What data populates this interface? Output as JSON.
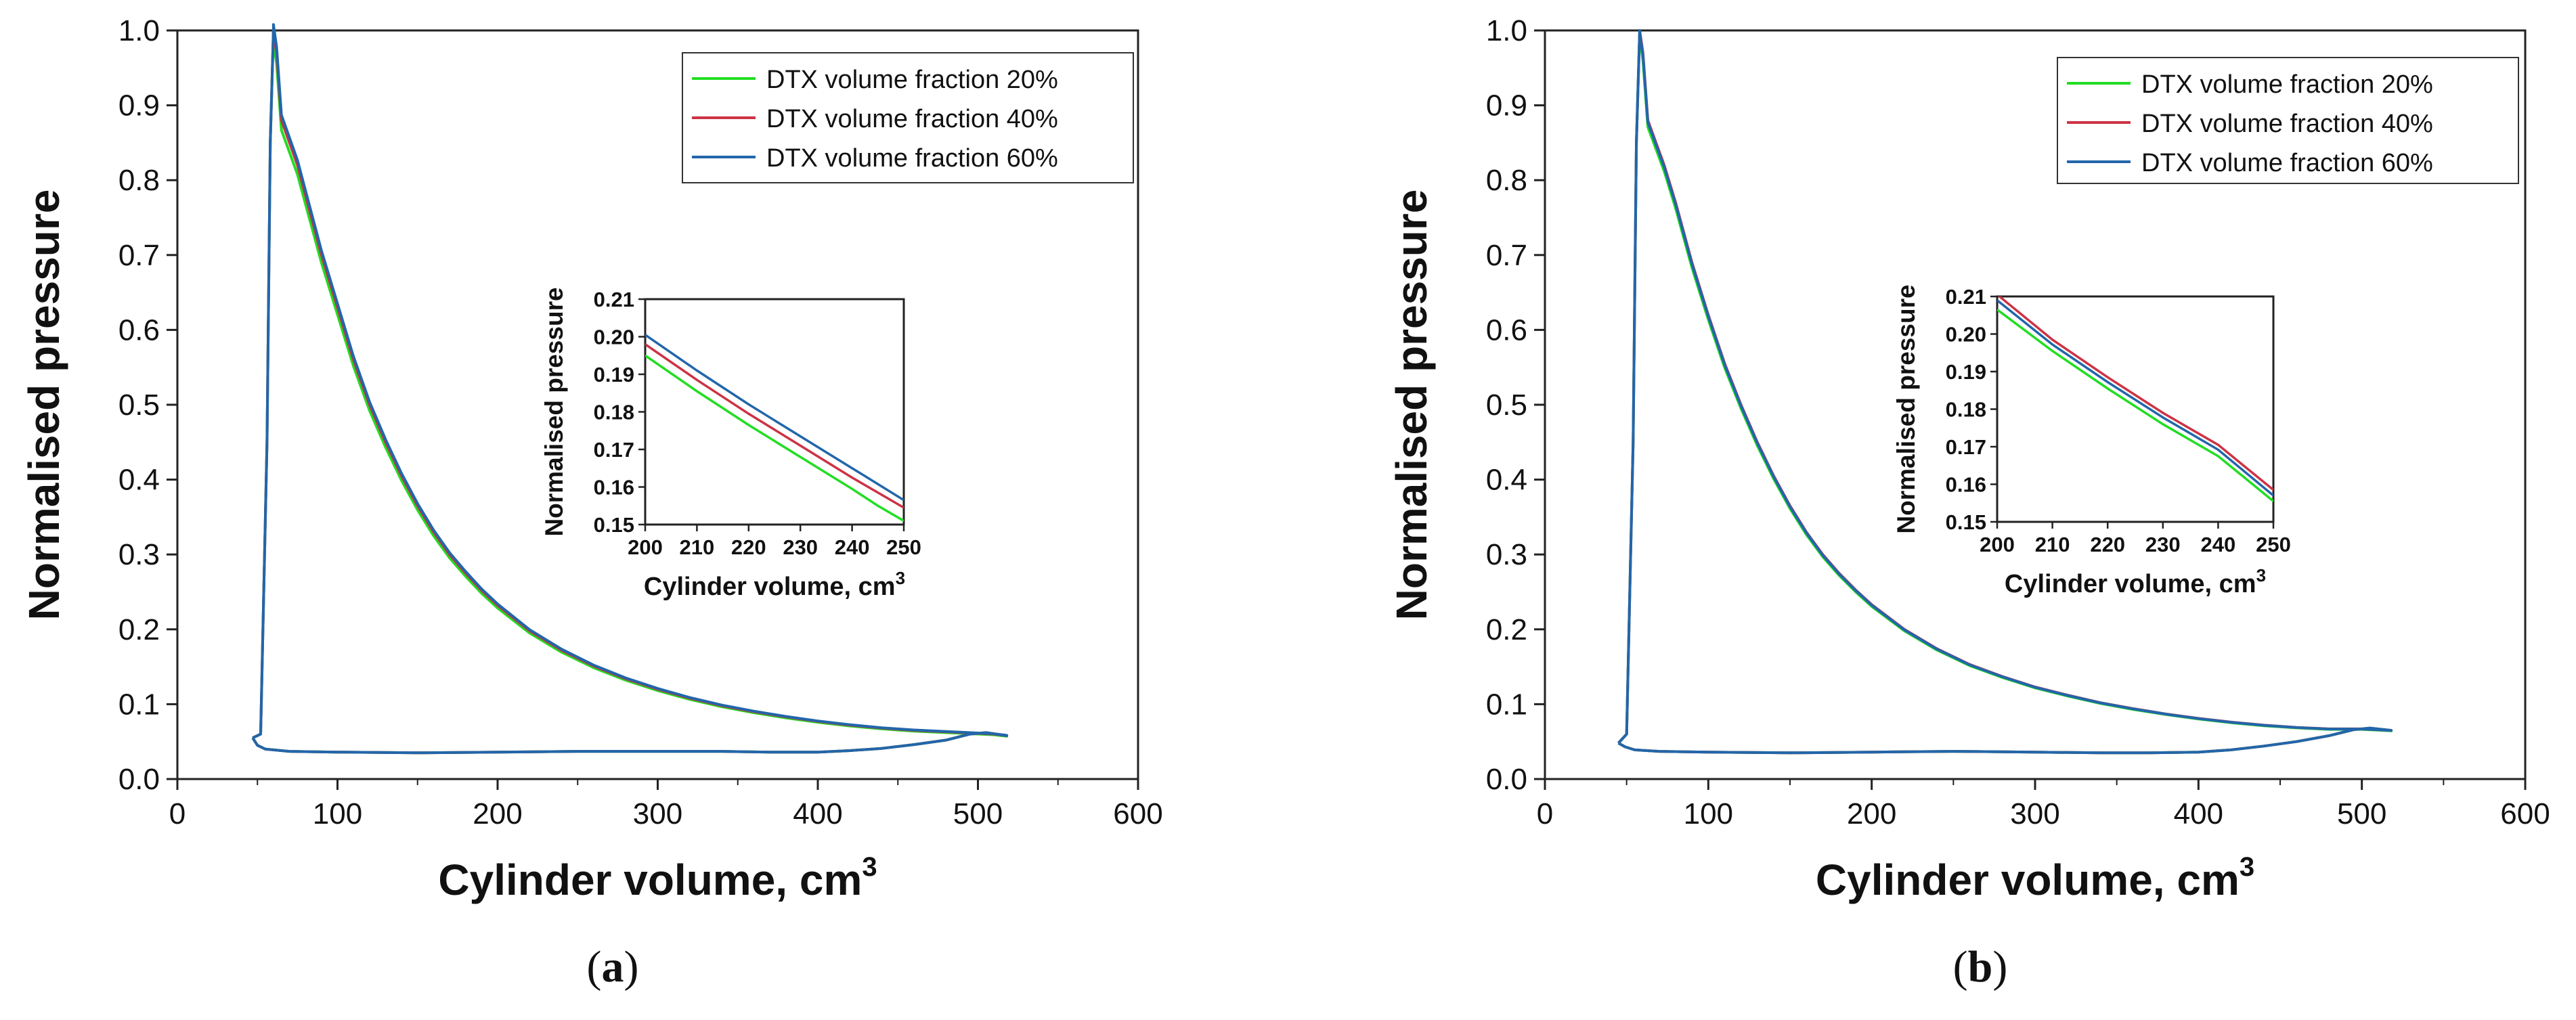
{
  "chart_data": [
    {
      "id": "a",
      "type": "line",
      "panel_label": "a",
      "xlabel": "Cylinder volume, cm",
      "xlabel_sup": "3",
      "ylabel": "Normalised pressure",
      "xlim": [
        0,
        600
      ],
      "ylim": [
        0,
        1.0
      ],
      "xticks": [
        0,
        100,
        200,
        300,
        400,
        500,
        600
      ],
      "yticks": [
        0.0,
        0.1,
        0.2,
        0.3,
        0.4,
        0.5,
        0.6,
        0.7,
        0.8,
        0.9,
        1.0
      ],
      "grid": false,
      "legend_position": "top-right",
      "series": [
        {
          "name": "DTX volume fraction 20%",
          "color": "#22dd22",
          "expansion_scale": 0.985,
          "compression_scale": 1.0
        },
        {
          "name": "DTX volume fraction 40%",
          "color": "#cc3344",
          "expansion_scale": 1.0,
          "compression_scale": 1.0
        },
        {
          "name": "DTX volume fraction 60%",
          "color": "#2266aa",
          "expansion_scale": 1.008,
          "compression_scale": 1.0
        }
      ],
      "expansion_curve": [
        [
          60,
          1.0
        ],
        [
          62,
          0.97
        ],
        [
          65,
          0.88
        ],
        [
          70,
          0.85
        ],
        [
          75,
          0.82
        ],
        [
          80,
          0.78
        ],
        [
          90,
          0.7
        ],
        [
          100,
          0.63
        ],
        [
          110,
          0.56
        ],
        [
          120,
          0.5
        ],
        [
          130,
          0.45
        ],
        [
          140,
          0.405
        ],
        [
          150,
          0.365
        ],
        [
          160,
          0.33
        ],
        [
          170,
          0.3
        ],
        [
          180,
          0.275
        ],
        [
          190,
          0.252
        ],
        [
          200,
          0.232
        ],
        [
          220,
          0.198
        ],
        [
          240,
          0.172
        ],
        [
          260,
          0.151
        ],
        [
          280,
          0.134
        ],
        [
          300,
          0.12
        ],
        [
          320,
          0.108
        ],
        [
          340,
          0.098
        ],
        [
          360,
          0.09
        ],
        [
          380,
          0.083
        ],
        [
          400,
          0.077
        ],
        [
          420,
          0.072
        ],
        [
          440,
          0.068
        ],
        [
          460,
          0.065
        ],
        [
          480,
          0.063
        ],
        [
          500,
          0.061
        ],
        [
          510,
          0.06
        ],
        [
          518,
          0.058
        ]
      ],
      "compression_curve": [
        [
          47,
          0.055
        ],
        [
          52,
          0.06
        ],
        [
          56,
          0.45
        ],
        [
          58,
          0.85
        ],
        [
          60,
          1.0
        ]
      ],
      "bottom_curve": [
        [
          518,
          0.058
        ],
        [
          505,
          0.062
        ],
        [
          495,
          0.06
        ],
        [
          480,
          0.052
        ],
        [
          460,
          0.046
        ],
        [
          440,
          0.041
        ],
        [
          420,
          0.038
        ],
        [
          400,
          0.036
        ],
        [
          370,
          0.036
        ],
        [
          340,
          0.037
        ],
        [
          300,
          0.037
        ],
        [
          250,
          0.037
        ],
        [
          200,
          0.036
        ],
        [
          150,
          0.035
        ],
        [
          100,
          0.036
        ],
        [
          70,
          0.037
        ],
        [
          55,
          0.04
        ],
        [
          50,
          0.045
        ],
        [
          47,
          0.055
        ]
      ],
      "inset": {
        "xlabel": "Cylinder volume, cm",
        "xlabel_sup": "3",
        "ylabel": "Normalised pressure",
        "xlim": [
          200,
          250
        ],
        "ylim": [
          0.15,
          0.21
        ],
        "xticks": [
          200,
          210,
          220,
          230,
          240,
          250
        ],
        "yticks": [
          0.15,
          0.16,
          0.17,
          0.18,
          0.19,
          0.2,
          0.21
        ],
        "ytick_labels": [
          "0.15",
          "0.16",
          "0.17",
          "0.18",
          "0.19",
          "0.20",
          "0.21"
        ],
        "series": [
          {
            "name": "DTX volume fraction 20%",
            "color": "#22dd22",
            "points": [
              [
                200,
                0.195
              ],
              [
                210,
                0.1855
              ],
              [
                220,
                0.1765
              ],
              [
                230,
                0.168
              ],
              [
                240,
                0.1595
              ],
              [
                245,
                0.155
              ],
              [
                250,
                0.151
              ]
            ]
          },
          {
            "name": "DTX volume fraction 40%",
            "color": "#cc3344",
            "points": [
              [
                200,
                0.198
              ],
              [
                210,
                0.1885
              ],
              [
                220,
                0.1795
              ],
              [
                230,
                0.171
              ],
              [
                240,
                0.1625
              ],
              [
                250,
                0.1545
              ]
            ]
          },
          {
            "name": "DTX volume fraction 60%",
            "color": "#2266aa",
            "points": [
              [
                200,
                0.2005
              ],
              [
                210,
                0.191
              ],
              [
                220,
                0.182
              ],
              [
                230,
                0.1735
              ],
              [
                240,
                0.165
              ],
              [
                250,
                0.1565
              ]
            ]
          }
        ]
      }
    },
    {
      "id": "b",
      "type": "line",
      "panel_label": "b",
      "xlabel": "Cylinder volume, cm",
      "xlabel_sup": "3",
      "ylabel": "Normalised pressure",
      "xlim": [
        0,
        600
      ],
      "ylim": [
        0,
        1.0
      ],
      "xticks": [
        0,
        100,
        200,
        300,
        400,
        500,
        600
      ],
      "yticks": [
        0.0,
        0.1,
        0.2,
        0.3,
        0.4,
        0.5,
        0.6,
        0.7,
        0.8,
        0.9,
        1.0
      ],
      "grid": false,
      "legend_position": "top-right",
      "series": [
        {
          "name": "DTX volume fraction 20%",
          "color": "#22dd22",
          "expansion_scale": 0.99,
          "compression_scale": 1.0
        },
        {
          "name": "DTX volume fraction 40%",
          "color": "#cc3344",
          "expansion_scale": 1.0,
          "compression_scale": 1.0
        },
        {
          "name": "DTX volume fraction 60%",
          "color": "#2266aa",
          "expansion_scale": 0.997,
          "compression_scale": 1.0
        }
      ],
      "expansion_curve": [
        [
          58,
          1.0
        ],
        [
          60,
          0.97
        ],
        [
          63,
          0.88
        ],
        [
          68,
          0.85
        ],
        [
          73,
          0.82
        ],
        [
          80,
          0.77
        ],
        [
          90,
          0.69
        ],
        [
          100,
          0.62
        ],
        [
          110,
          0.555
        ],
        [
          120,
          0.5
        ],
        [
          130,
          0.45
        ],
        [
          140,
          0.405
        ],
        [
          150,
          0.365
        ],
        [
          160,
          0.33
        ],
        [
          170,
          0.3
        ],
        [
          180,
          0.275
        ],
        [
          190,
          0.253
        ],
        [
          200,
          0.233
        ],
        [
          220,
          0.2
        ],
        [
          240,
          0.174
        ],
        [
          260,
          0.153
        ],
        [
          280,
          0.137
        ],
        [
          300,
          0.123
        ],
        [
          320,
          0.112
        ],
        [
          340,
          0.102
        ],
        [
          360,
          0.094
        ],
        [
          380,
          0.087
        ],
        [
          400,
          0.081
        ],
        [
          420,
          0.076
        ],
        [
          440,
          0.072
        ],
        [
          460,
          0.069
        ],
        [
          480,
          0.067
        ],
        [
          500,
          0.067
        ],
        [
          510,
          0.066
        ],
        [
          518,
          0.065
        ]
      ],
      "compression_curve": [
        [
          45,
          0.048
        ],
        [
          50,
          0.06
        ],
        [
          54,
          0.45
        ],
        [
          56,
          0.85
        ],
        [
          58,
          1.0
        ]
      ],
      "bottom_curve": [
        [
          518,
          0.065
        ],
        [
          505,
          0.068
        ],
        [
          495,
          0.066
        ],
        [
          480,
          0.058
        ],
        [
          460,
          0.05
        ],
        [
          440,
          0.044
        ],
        [
          420,
          0.039
        ],
        [
          400,
          0.036
        ],
        [
          370,
          0.035
        ],
        [
          340,
          0.035
        ],
        [
          300,
          0.036
        ],
        [
          250,
          0.037
        ],
        [
          200,
          0.036
        ],
        [
          150,
          0.035
        ],
        [
          100,
          0.036
        ],
        [
          70,
          0.037
        ],
        [
          55,
          0.039
        ],
        [
          49,
          0.043
        ],
        [
          45,
          0.048
        ]
      ],
      "inset": {
        "xlabel": "Cylinder volume, cm",
        "xlabel_sup": "3",
        "ylabel": "Normalised pressure",
        "xlim": [
          200,
          250
        ],
        "ylim": [
          0.15,
          0.21
        ],
        "xticks": [
          200,
          210,
          220,
          230,
          240,
          250
        ],
        "yticks": [
          0.15,
          0.16,
          0.17,
          0.18,
          0.19,
          0.2,
          0.21
        ],
        "ytick_labels": [
          "0.15",
          "0.16",
          "0.17",
          "0.18",
          "0.19",
          "0.20",
          "0.21"
        ],
        "series": [
          {
            "name": "DTX volume fraction 20%",
            "color": "#22dd22",
            "points": [
              [
                200,
                0.2065
              ],
              [
                210,
                0.1955
              ],
              [
                220,
                0.1855
              ],
              [
                230,
                0.176
              ],
              [
                240,
                0.1675
              ],
              [
                250,
                0.1555
              ]
            ]
          },
          {
            "name": "DTX volume fraction 40%",
            "color": "#cc3344",
            "points": [
              [
                200,
                0.2105
              ],
              [
                210,
                0.1985
              ],
              [
                220,
                0.1885
              ],
              [
                230,
                0.179
              ],
              [
                240,
                0.1705
              ],
              [
                250,
                0.1585
              ]
            ]
          },
          {
            "name": "DTX volume fraction 60%",
            "color": "#2266aa",
            "points": [
              [
                200,
                0.209
              ],
              [
                210,
                0.1972
              ],
              [
                220,
                0.1872
              ],
              [
                230,
                0.1778
              ],
              [
                240,
                0.1692
              ],
              [
                250,
                0.157
              ]
            ]
          }
        ]
      }
    }
  ]
}
